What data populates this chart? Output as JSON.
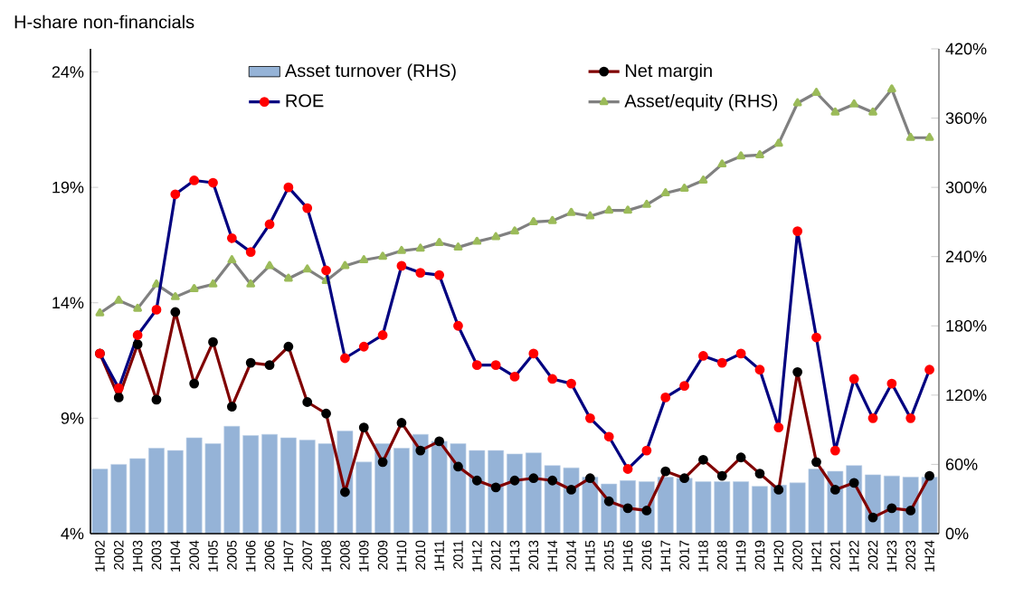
{
  "chart_data": {
    "type": "line",
    "title": "H-share non-financials",
    "categories": [
      "1H02",
      "2002",
      "1H03",
      "2003",
      "1H04",
      "2004",
      "1H05",
      "2005",
      "1H06",
      "2006",
      "1H07",
      "2007",
      "1H08",
      "2008",
      "1H09",
      "2009",
      "1H10",
      "2010",
      "1H11",
      "2011",
      "1H12",
      "2012",
      "1H13",
      "2013",
      "1H14",
      "2014",
      "1H15",
      "2015",
      "1H16",
      "2016",
      "1H17",
      "2017",
      "1H18",
      "2018",
      "1H19",
      "2019",
      "1H20",
      "2020",
      "1H21",
      "2021",
      "1H22",
      "2022",
      "1H23",
      "2023",
      "1H24"
    ],
    "series": [
      {
        "name": "Asset turnover (RHS)",
        "type": "bar",
        "axis": "y2",
        "color": "#95b3d7",
        "values": [
          56,
          60,
          65,
          74,
          72,
          83,
          78,
          93,
          85,
          86,
          83,
          81,
          78,
          89,
          62,
          78,
          74,
          86,
          80,
          78,
          72,
          72,
          69,
          70,
          59,
          57,
          49,
          43,
          46,
          45,
          49,
          48,
          45,
          45,
          45,
          41,
          42,
          44,
          56,
          54,
          59,
          51,
          50,
          49,
          49
        ]
      },
      {
        "name": "Net margin",
        "color": "#800000",
        "marker": "circle",
        "values": [
          11.8,
          9.9,
          12.2,
          9.8,
          13.6,
          10.5,
          12.3,
          9.5,
          11.4,
          11.3,
          12.1,
          9.7,
          9.2,
          5.8,
          8.6,
          7.1,
          8.8,
          7.6,
          8.0,
          6.9,
          6.3,
          6.0,
          6.3,
          6.4,
          6.3,
          5.9,
          6.4,
          5.4,
          5.1,
          5.0,
          6.7,
          6.4,
          7.2,
          6.5,
          7.3,
          6.6,
          5.9,
          11.0,
          7.1,
          5.9,
          6.2,
          4.7,
          5.1,
          5.0,
          6.5
        ]
      },
      {
        "name": "ROE",
        "color": "#000080",
        "marker": "circle",
        "values": [
          11.8,
          10.3,
          12.6,
          13.7,
          18.7,
          19.3,
          19.2,
          16.8,
          16.2,
          17.4,
          19.0,
          18.1,
          15.4,
          11.6,
          12.1,
          12.6,
          15.6,
          15.3,
          15.2,
          13.0,
          11.3,
          11.3,
          10.8,
          11.8,
          10.7,
          10.5,
          9.0,
          8.2,
          6.8,
          7.6,
          9.9,
          10.4,
          11.7,
          11.4,
          11.8,
          11.1,
          8.6,
          17.1,
          12.5,
          7.6,
          10.7,
          9.0,
          10.5,
          9.0,
          11.1
        ]
      },
      {
        "name": "Asset/equity (RHS)",
        "axis": "y2",
        "color": "#808080",
        "marker": "triangle",
        "values": [
          191,
          202,
          195,
          216,
          205,
          212,
          216,
          237,
          216,
          232,
          221,
          229,
          219,
          232,
          237,
          240,
          245,
          247,
          252,
          248,
          253,
          257,
          262,
          270,
          271,
          278,
          275,
          280,
          280,
          285,
          295,
          299,
          306,
          320,
          327,
          328,
          338,
          373,
          382,
          365,
          372,
          365,
          385,
          343,
          343
        ]
      }
    ],
    "ylim": [
      4,
      25
    ],
    "yticks": [
      {
        "value": 4,
        "label": "4%"
      },
      {
        "value": 9,
        "label": "9%"
      },
      {
        "value": 14,
        "label": "14%"
      },
      {
        "value": 19,
        "label": "19%"
      },
      {
        "value": 24,
        "label": "24%"
      }
    ],
    "y2lim": [
      0,
      420
    ],
    "y2ticks": [
      {
        "value": 0,
        "label": "0%"
      },
      {
        "value": 60,
        "label": "60%"
      },
      {
        "value": 120,
        "label": "120%"
      },
      {
        "value": 180,
        "label": "180%"
      },
      {
        "value": 240,
        "label": "240%"
      },
      {
        "value": 300,
        "label": "300%"
      },
      {
        "value": 360,
        "label": "360%"
      },
      {
        "value": 420,
        "label": "420%"
      }
    ],
    "legend": "top"
  }
}
